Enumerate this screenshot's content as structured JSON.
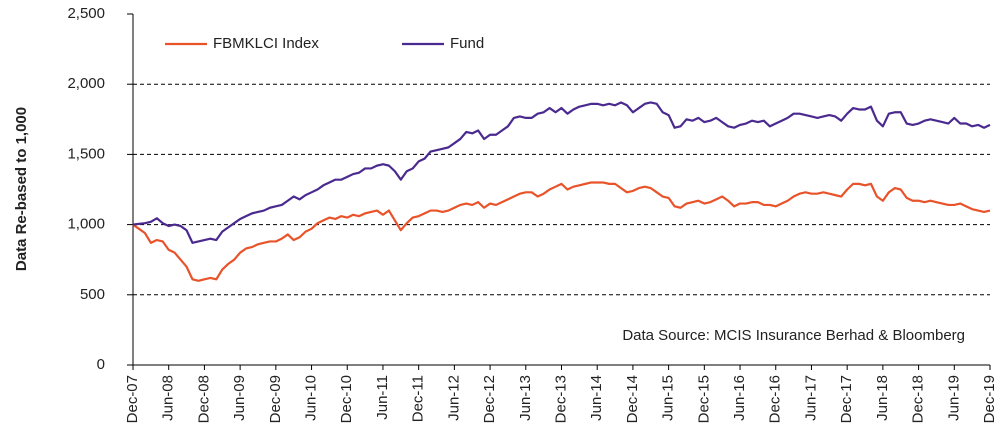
{
  "chart_data": {
    "type": "line",
    "y_label": "Data Re-based to 1,000",
    "annotation": "Data Source: MCIS Insurance Berhad & Bloomberg",
    "legend": "top-left",
    "grid": true,
    "ylim": [
      0,
      2500
    ],
    "yticks": [
      0,
      500,
      {
        "value": 1000,
        "label": "1,000"
      },
      {
        "value": 1500,
        "label": "1,500"
      },
      {
        "value": 2000,
        "label": "2,000"
      },
      {
        "value": 2500,
        "label": "2,500"
      }
    ],
    "categories": [
      "Dec-07",
      null,
      null,
      null,
      null,
      null,
      "Jun-08",
      null,
      null,
      null,
      null,
      null,
      "Dec-08",
      null,
      null,
      null,
      null,
      null,
      "Jun-09",
      null,
      null,
      null,
      null,
      null,
      "Dec-09",
      null,
      null,
      null,
      null,
      null,
      "Jun-10",
      null,
      null,
      null,
      null,
      null,
      "Dec-10",
      null,
      null,
      null,
      null,
      null,
      "Jun-11",
      null,
      null,
      null,
      null,
      null,
      "Dec-11",
      null,
      null,
      null,
      null,
      null,
      "Jun-12",
      null,
      null,
      null,
      null,
      null,
      "Dec-12",
      null,
      null,
      null,
      null,
      null,
      "Jun-13",
      null,
      null,
      null,
      null,
      null,
      "Dec-13",
      null,
      null,
      null,
      null,
      null,
      "Jun-14",
      null,
      null,
      null,
      null,
      null,
      "Dec-14",
      null,
      null,
      null,
      null,
      null,
      "Jun-15",
      null,
      null,
      null,
      null,
      null,
      "Dec-15",
      null,
      null,
      null,
      null,
      null,
      "Jun-16",
      null,
      null,
      null,
      null,
      null,
      "Dec-16",
      null,
      null,
      null,
      null,
      null,
      "Jun-17",
      null,
      null,
      null,
      null,
      null,
      "Dec-17",
      null,
      null,
      null,
      null,
      null,
      "Jun-18",
      null,
      null,
      null,
      null,
      null,
      "Dec-18",
      null,
      null,
      null,
      null,
      null,
      "Jun-19",
      null,
      null,
      null,
      null,
      null,
      "Dec-19"
    ],
    "series": [
      {
        "name": "FBMKLCI Index",
        "color": "#e8532a",
        "values": [
          1000,
          970,
          940,
          870,
          890,
          880,
          820,
          800,
          750,
          700,
          610,
          600,
          610,
          620,
          610,
          680,
          720,
          750,
          800,
          830,
          840,
          860,
          870,
          880,
          880,
          900,
          930,
          890,
          910,
          950,
          970,
          1010,
          1030,
          1050,
          1040,
          1060,
          1050,
          1070,
          1060,
          1080,
          1090,
          1100,
          1070,
          1100,
          1030,
          960,
          1010,
          1050,
          1060,
          1080,
          1100,
          1100,
          1090,
          1100,
          1120,
          1140,
          1150,
          1140,
          1160,
          1120,
          1150,
          1140,
          1160,
          1180,
          1200,
          1220,
          1230,
          1230,
          1200,
          1220,
          1250,
          1270,
          1290,
          1250,
          1270,
          1280,
          1290,
          1300,
          1300,
          1300,
          1290,
          1290,
          1260,
          1230,
          1240,
          1260,
          1270,
          1260,
          1230,
          1200,
          1190,
          1130,
          1120,
          1150,
          1160,
          1170,
          1150,
          1160,
          1180,
          1200,
          1170,
          1130,
          1150,
          1150,
          1160,
          1160,
          1140,
          1140,
          1130,
          1150,
          1170,
          1200,
          1220,
          1230,
          1220,
          1220,
          1230,
          1220,
          1210,
          1200,
          1250,
          1290,
          1290,
          1280,
          1290,
          1200,
          1170,
          1230,
          1260,
          1250,
          1190,
          1170,
          1170,
          1160,
          1170,
          1160,
          1150,
          1140,
          1140,
          1150,
          1130,
          1110,
          1100,
          1090,
          1100
        ]
      },
      {
        "name": "Fund",
        "color": "#4b2a8f",
        "values": [
          1000,
          1005,
          1010,
          1020,
          1045,
          1010,
          990,
          1000,
          990,
          960,
          870,
          880,
          890,
          900,
          890,
          950,
          980,
          1010,
          1040,
          1060,
          1080,
          1090,
          1100,
          1120,
          1130,
          1140,
          1170,
          1200,
          1180,
          1210,
          1230,
          1250,
          1280,
          1300,
          1320,
          1320,
          1340,
          1360,
          1370,
          1400,
          1400,
          1420,
          1430,
          1420,
          1380,
          1320,
          1380,
          1400,
          1450,
          1470,
          1520,
          1530,
          1540,
          1550,
          1580,
          1610,
          1660,
          1650,
          1670,
          1610,
          1640,
          1640,
          1670,
          1700,
          1760,
          1770,
          1760,
          1760,
          1790,
          1800,
          1830,
          1800,
          1830,
          1790,
          1820,
          1840,
          1850,
          1860,
          1860,
          1850,
          1860,
          1850,
          1870,
          1850,
          1800,
          1830,
          1860,
          1870,
          1860,
          1800,
          1780,
          1690,
          1700,
          1750,
          1740,
          1760,
          1730,
          1740,
          1760,
          1730,
          1700,
          1690,
          1710,
          1720,
          1740,
          1730,
          1740,
          1700,
          1720,
          1740,
          1760,
          1790,
          1790,
          1780,
          1770,
          1760,
          1770,
          1780,
          1770,
          1740,
          1790,
          1830,
          1820,
          1820,
          1840,
          1740,
          1700,
          1790,
          1800,
          1800,
          1720,
          1710,
          1720,
          1740,
          1750,
          1740,
          1730,
          1720,
          1760,
          1720,
          1720,
          1700,
          1710,
          1690,
          1710
        ]
      }
    ]
  }
}
